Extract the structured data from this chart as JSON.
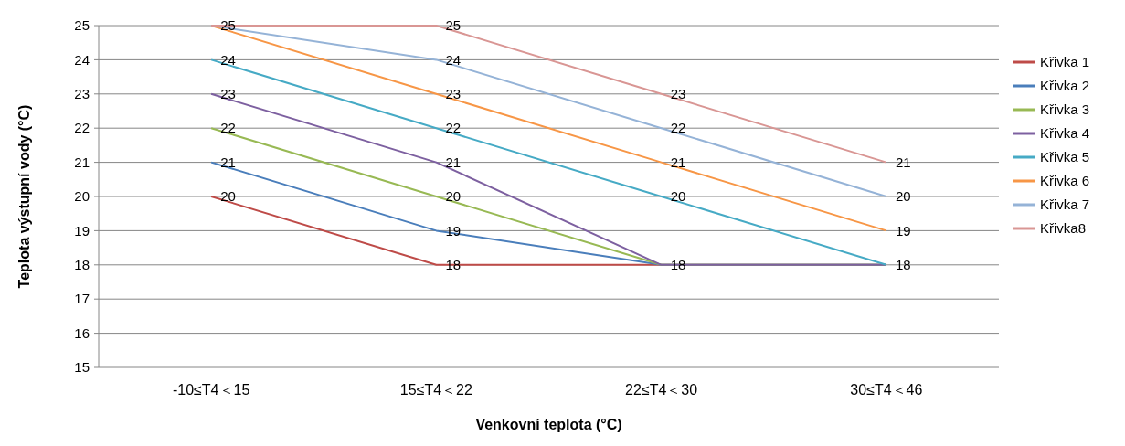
{
  "chart_data": {
    "type": "line",
    "xlabel": "Venkovní teplota (°C)",
    "ylabel": "Teplota výstupní vody (°C)",
    "categories": [
      "-10≤T4＜15",
      "15≤T4＜22",
      "22≤T4＜30",
      "30≤T4＜46"
    ],
    "ylim": [
      15,
      25
    ],
    "yticks": [
      15,
      16,
      17,
      18,
      19,
      20,
      21,
      22,
      23,
      24,
      25
    ],
    "grid": "y",
    "legend": "right",
    "marker": "none",
    "data_labels": true,
    "series": [
      {
        "name": "Křivka 1",
        "color": "#be4b48",
        "values": [
          20,
          18,
          18,
          18
        ]
      },
      {
        "name": "Křivka 2",
        "color": "#4a7ebb",
        "values": [
          21,
          19,
          18,
          18
        ],
        "value_labels": [
          "21",
          "19",
          null,
          null
        ]
      },
      {
        "name": "Křivka 3",
        "color": "#98b954",
        "values": [
          22,
          20,
          18,
          18
        ],
        "value_labels": [
          "22",
          "20",
          null,
          null
        ]
      },
      {
        "name": "Křivka 4",
        "color": "#7d60a0",
        "values": [
          23,
          21,
          18,
          18
        ],
        "value_labels": [
          "23",
          "21",
          null,
          null
        ]
      },
      {
        "name": "Křivka 5",
        "color": "#46aac5",
        "values": [
          24,
          22,
          20,
          18
        ],
        "value_labels": [
          "24",
          "22",
          "20",
          null
        ]
      },
      {
        "name": "Křivka 6",
        "color": "#f79646",
        "values": [
          25,
          23,
          21,
          19
        ]
      },
      {
        "name": "Křivka 7",
        "color": "#95b3d7",
        "values": [
          25,
          24,
          22,
          20
        ],
        "value_labels": [
          null,
          "24",
          "22",
          "20"
        ]
      },
      {
        "name": "Křivka8",
        "color": "#d99694",
        "values": [
          25,
          25,
          23,
          21
        ],
        "value_labels": [
          null,
          "25",
          "23",
          "21"
        ]
      }
    ]
  }
}
